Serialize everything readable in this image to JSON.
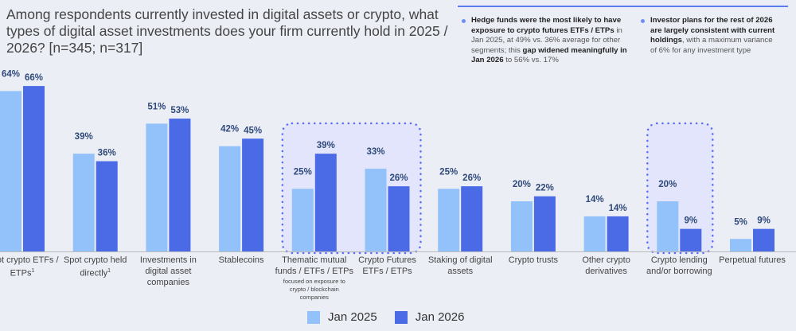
{
  "title": "Among respondents currently invested in digital assets or crypto, what types of digital asset investments does your firm currently hold in 2025 / 2026? [n=345; n=317]",
  "notes": [
    {
      "parts": [
        {
          "b": true,
          "t": "Hedge funds were the most likely to have exposure to crypto futures ETFs / ETPs"
        },
        {
          "b": false,
          "t": " in Jan 2025, at 49% vs. 36% average for other segments; this "
        },
        {
          "b": true,
          "t": "gap widened meaningfully in Jan 2026"
        },
        {
          "b": false,
          "t": " to 56% vs. 17%"
        }
      ]
    },
    {
      "parts": [
        {
          "b": true,
          "t": "Investor plans for the rest of 2026 are largely consistent with current holdings"
        },
        {
          "b": false,
          "t": ", with a maximum variance of 6% for any investment type"
        }
      ]
    }
  ],
  "colors": {
    "jan2025": "#93c2fb",
    "jan2026": "#4b6ae6",
    "highlight": "#5b6ef5",
    "background": "#eceef6"
  },
  "chart_data": {
    "type": "bar",
    "categories": [
      {
        "label": "Spot crypto ETFs / ETPs",
        "sup": "1"
      },
      {
        "label": "Spot crypto held directly",
        "sup": "1"
      },
      {
        "label": "Investments in digital asset companies"
      },
      {
        "label": "Stablecoins"
      },
      {
        "label": "Thematic mutual funds / ETFs / ETPs",
        "sub": "focused on exposure to crypto / blockchain companies"
      },
      {
        "label": "Crypto Futures ETFs / ETPs"
      },
      {
        "label": "Staking of digital assets"
      },
      {
        "label": "Crypto trusts"
      },
      {
        "label": "Other crypto derivatives"
      },
      {
        "label": "Crypto lending and/or borrowing"
      },
      {
        "label": "Perpetual futures"
      }
    ],
    "series": [
      {
        "name": "Jan 2025",
        "values": [
          64,
          39,
          51,
          42,
          25,
          33,
          25,
          20,
          14,
          20,
          5
        ]
      },
      {
        "name": "Jan 2026",
        "values": [
          66,
          36,
          53,
          45,
          39,
          26,
          26,
          22,
          14,
          9,
          9
        ]
      }
    ],
    "unit": "%",
    "highlighted_groups": [
      [
        4,
        5
      ],
      [
        9
      ]
    ],
    "legend": "bottom-center",
    "grid": false
  }
}
